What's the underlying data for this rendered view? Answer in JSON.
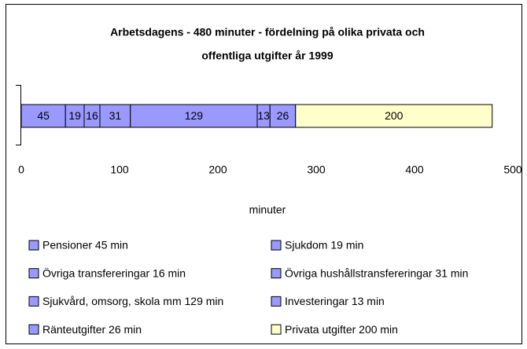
{
  "chart_data": {
    "type": "stacked-bar-horizontal",
    "title": [
      "Arbetsdagens - 480 minuter - fördelning på olika privata och",
      "offentliga utgifter år 1999"
    ],
    "xlabel": "minuter",
    "xlim": [
      0,
      500
    ],
    "xticks": [
      0,
      100,
      200,
      300,
      400,
      500
    ],
    "series": [
      {
        "name": "Pensioner 45 min",
        "color": "#9999ff",
        "values": [
          45
        ]
      },
      {
        "name": "Sjukdom 19 min",
        "color": "#9999ff",
        "values": [
          19
        ]
      },
      {
        "name": "Övriga transfereringar 16 min",
        "color": "#9999ff",
        "values": [
          16
        ]
      },
      {
        "name": "Övriga hushållstransfereringar 31 min",
        "color": "#9999ff",
        "values": [
          31
        ]
      },
      {
        "name": "Sjukvård, omsorg, skola mm 129 min",
        "color": "#9999ff",
        "values": [
          129
        ]
      },
      {
        "name": "Investeringar 13 min",
        "color": "#9999ff",
        "values": [
          13
        ]
      },
      {
        "name": "Ränteutgifter 26 min",
        "color": "#9999ff",
        "values": [
          26
        ]
      },
      {
        "name": "Privata utgifter 200 min",
        "color": "#ffffcc",
        "values": [
          200
        ]
      }
    ]
  }
}
